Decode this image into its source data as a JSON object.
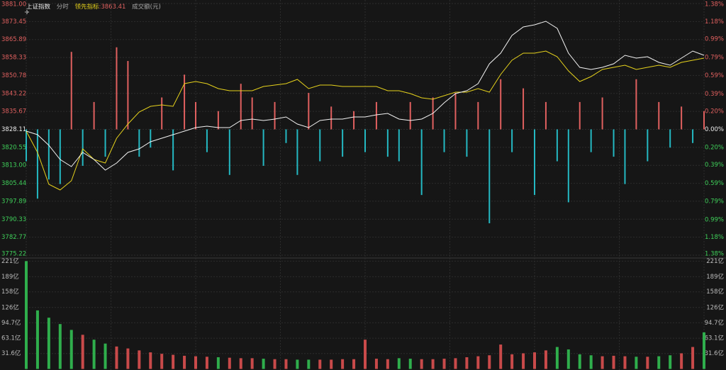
{
  "chart_data": [
    {
      "type": "line",
      "title": "上证指数",
      "mode": "分时",
      "legend_value": ":3863.41",
      "volume_label": "成交额(元)",
      "ylim": [
        3775.22,
        3881.0
      ],
      "yticks": [
        {
          "value": 3881.0,
          "label": "3881.00"
        },
        {
          "value": 3873.45,
          "label": "3873.45"
        },
        {
          "value": 3865.89,
          "label": "3865.89"
        },
        {
          "value": 3858.33,
          "label": "3858.33"
        },
        {
          "value": 3850.78,
          "label": "3850.78"
        },
        {
          "value": 3843.22,
          "label": "3843.22"
        },
        {
          "value": 3835.67,
          "label": "3835.67"
        },
        {
          "value": 3828.11,
          "label": "3828.11"
        },
        {
          "value": 3820.55,
          "label": "3820.55"
        },
        {
          "value": 3813.0,
          "label": "3813.00"
        },
        {
          "value": 3805.44,
          "label": "3805.44"
        },
        {
          "value": 3797.89,
          "label": "3797.89"
        },
        {
          "value": 3790.33,
          "label": "3790.33"
        },
        {
          "value": 3782.77,
          "label": "3782.77"
        },
        {
          "value": 3775.22,
          "label": "3775.22"
        }
      ],
      "y2lim": [
        -1.38,
        1.38
      ],
      "y2ticks": [
        {
          "value": 1.38,
          "label": "1.38%"
        },
        {
          "value": 1.18,
          "label": "1.18%"
        },
        {
          "value": 0.99,
          "label": "0.99%"
        },
        {
          "value": 0.79,
          "label": "0.79%"
        },
        {
          "value": 0.59,
          "label": "0.59%"
        },
        {
          "value": 0.39,
          "label": "0.39%"
        },
        {
          "value": 0.2,
          "label": "0.20%"
        },
        {
          "value": 0,
          "label": "0.00%"
        },
        {
          "value": -0.2,
          "label": "0.20%"
        },
        {
          "value": -0.39,
          "label": "0.39%"
        },
        {
          "value": -0.59,
          "label": "0.59%"
        },
        {
          "value": -0.79,
          "label": "0.79%"
        },
        {
          "value": -0.99,
          "label": "0.99%"
        },
        {
          "value": -1.18,
          "label": "1.18%"
        },
        {
          "value": -1.38,
          "label": "1.38%"
        }
      ],
      "grid": true,
      "up_color": "#e0605f",
      "down_color": "#24b8c2",
      "series": [
        {
          "name": "上证指数",
          "color": "#f2f2f2",
          "values": [
            3827.37,
            3825.88,
            3821.41,
            3815.45,
            3812.47,
            3818.43,
            3815.45,
            3810.98,
            3813.96,
            3818.43,
            3819.92,
            3822.9,
            3824.39,
            3825.88,
            3827.37,
            3828.86,
            3829.45,
            3828.86,
            3828.86,
            3831.83,
            3832.43,
            3831.83,
            3832.43,
            3833.32,
            3830.35,
            3828.86,
            3831.83,
            3832.43,
            3832.43,
            3833.32,
            3833.32,
            3834.22,
            3834.81,
            3832.43,
            3831.83,
            3832.43,
            3834.81,
            3839.28,
            3843.16,
            3844.35,
            3847.33,
            3855.67,
            3860.14,
            3867.59,
            3871.17,
            3872.06,
            3873.55,
            3870.57,
            3860.14,
            3854.18,
            3853.29,
            3854.18,
            3855.67,
            3859.25,
            3858.06,
            3858.65,
            3856.27,
            3855.08,
            3858.06,
            3861.04,
            3859.25
          ]
        },
        {
          "name": "领先指标",
          "color": "#e6d21c",
          "values": [
            3827.37,
            3818.43,
            3805.02,
            3802.63,
            3806.51,
            3819.92,
            3815.45,
            3813.96,
            3824.39,
            3830.35,
            3835.41,
            3837.79,
            3838.39,
            3837.79,
            3847.33,
            3848.22,
            3847.33,
            3845.24,
            3844.35,
            3844.35,
            3844.35,
            3846.14,
            3846.73,
            3847.33,
            3849.12,
            3845.24,
            3846.73,
            3846.73,
            3846.14,
            3846.14,
            3846.14,
            3846.14,
            3844.35,
            3844.35,
            3843.16,
            3841.37,
            3840.77,
            3842.26,
            3843.75,
            3843.75,
            3845.24,
            3843.75,
            3851.2,
            3857.16,
            3860.14,
            3860.14,
            3861.04,
            3858.65,
            3852.69,
            3848.22,
            3850.31,
            3853.29,
            3854.18,
            3855.08,
            3853.29,
            3854.18,
            3855.08,
            3854.18,
            3856.27,
            3857.16,
            3858.06
          ]
        }
      ],
      "bars": {
        "axis": "y2",
        "values": [
          -0.35,
          -0.76,
          -0.55,
          -0.6,
          0.85,
          -0.4,
          0.3,
          -0.3,
          0.9,
          0.75,
          -0.3,
          -0.2,
          0.35,
          -0.45,
          0.6,
          0.3,
          -0.25,
          0.2,
          -0.5,
          0.5,
          0.35,
          -0.4,
          0.3,
          -0.15,
          -0.5,
          0.4,
          -0.35,
          0.25,
          -0.3,
          0.2,
          -0.25,
          0.3,
          -0.3,
          -0.35,
          0.3,
          -0.72,
          0.35,
          -0.25,
          0.4,
          -0.3,
          0.3,
          -1.03,
          0.55,
          -0.25,
          0.45,
          -0.72,
          0.3,
          -0.35,
          -0.8,
          0.3,
          -0.25,
          0.35,
          -0.3,
          -0.6,
          0.55,
          -0.35,
          0.3,
          -0.2,
          0.25,
          -0.15,
          0.2
        ]
      }
    },
    {
      "type": "bar",
      "ylim": [
        0,
        223
      ],
      "yticks": [
        {
          "value": 221,
          "label": "221亿"
        },
        {
          "value": 189,
          "label": "189亿"
        },
        {
          "value": 158,
          "label": "158亿"
        },
        {
          "value": 126,
          "label": "126亿"
        },
        {
          "value": 94.7,
          "label": "94.7亿"
        },
        {
          "value": 63.1,
          "label": "63.1亿"
        },
        {
          "value": 31.6,
          "label": "31.6亿"
        }
      ],
      "grid": true,
      "up_color": "#c94a4a",
      "down_color": "#2fae4c",
      "values": [
        221,
        120,
        105,
        92,
        80,
        70,
        60,
        52,
        46,
        42,
        38,
        34,
        31,
        29,
        27,
        26,
        25,
        24,
        23,
        22,
        22,
        21,
        20,
        20,
        19,
        19,
        19,
        19,
        20,
        20,
        60,
        21,
        20,
        22,
        21,
        20,
        20,
        21,
        22,
        24,
        26,
        28,
        50,
        30,
        32,
        34,
        38,
        45,
        40,
        30,
        28,
        26,
        27,
        26,
        25,
        25,
        26,
        28,
        32,
        45,
        75
      ]
    }
  ]
}
